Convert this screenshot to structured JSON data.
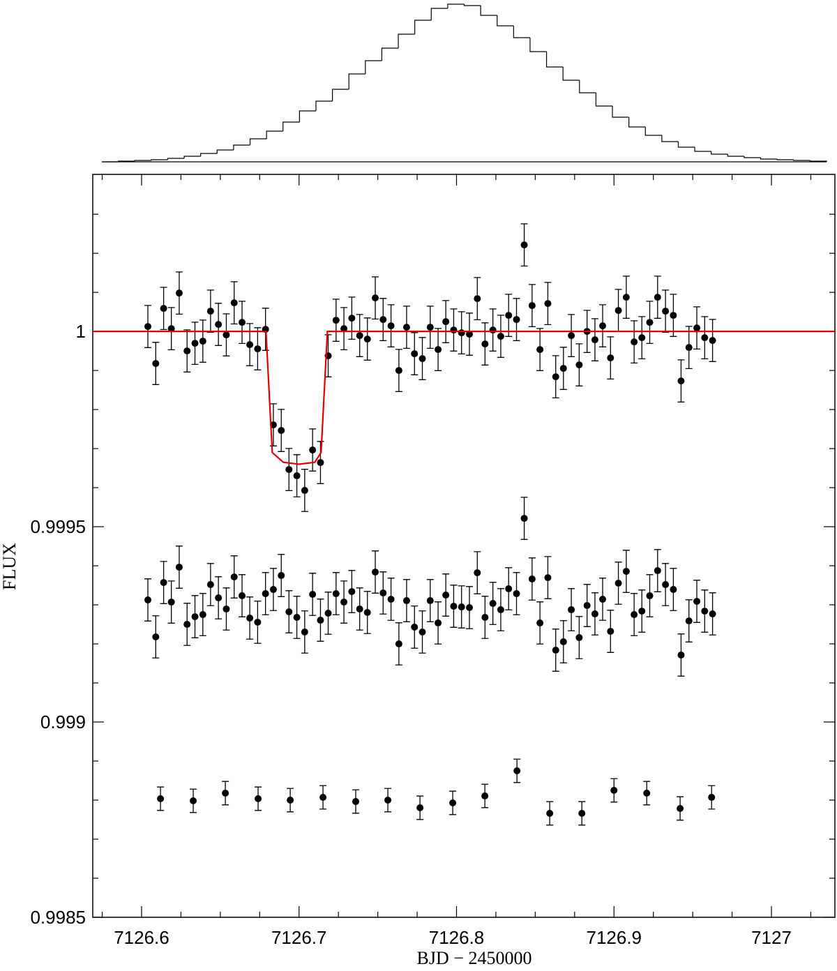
{
  "chart_data": [
    {
      "type": "histogram",
      "bins": [
        0,
        1,
        2,
        3,
        4,
        5,
        6,
        7,
        8,
        9,
        10,
        11,
        12,
        13,
        14,
        15,
        16,
        17,
        18,
        19,
        20,
        21,
        22,
        23,
        24,
        25,
        26,
        27,
        28,
        29,
        30,
        31,
        32,
        33,
        34,
        35,
        36,
        37,
        38,
        39,
        40,
        41,
        42,
        43,
        44
      ],
      "counts": [
        0,
        1,
        2,
        3,
        5,
        8,
        12,
        17,
        24,
        33,
        44,
        57,
        73,
        87,
        104,
        126,
        145,
        163,
        183,
        203,
        220,
        226,
        224,
        210,
        195,
        178,
        158,
        136,
        117,
        99,
        80,
        64,
        50,
        38,
        29,
        21,
        15,
        11,
        8,
        6,
        4,
        3,
        2,
        1
      ],
      "xlim": [
        0,
        44
      ],
      "ylim": [
        0,
        230
      ],
      "color": "#000000"
    },
    {
      "type": "scatter",
      "xlabel": "BJD − 2450000",
      "ylabel": "FLUX",
      "xlim": [
        7126.569,
        7127.0403
      ],
      "ylim": [
        0.9985,
        1.000402
      ],
      "xticks": [
        7126.6,
        7126.7,
        7126.8,
        7126.9,
        7127
      ],
      "xminorticks": [
        7126.575,
        7126.625,
        7126.65,
        7126.675,
        7126.725,
        7126.75,
        7126.775,
        7126.825,
        7126.85,
        7126.875,
        7126.925,
        7126.95,
        7126.975,
        7127.025
      ],
      "yticks": [
        0.9985,
        0.999,
        0.9995,
        1
      ],
      "yminorticks": [
        0.9986,
        0.9987,
        0.9988,
        0.9989,
        0.9991,
        0.9992,
        0.9993,
        0.9994,
        0.9996,
        0.9997,
        0.9998,
        0.9999,
        1.0001,
        1.0002,
        1.0003
      ],
      "x": [
        7126.604,
        7126.609,
        7126.614,
        7126.6189,
        7126.6239,
        7126.6289,
        7126.6339,
        7126.6389,
        7126.6438,
        7126.6488,
        7126.6538,
        7126.6588,
        7126.6638,
        7126.6687,
        7126.6737,
        7126.6787,
        7126.6837,
        7126.6887,
        7126.6936,
        7126.6986,
        7126.7036,
        7126.7086,
        7126.7136,
        7126.7185,
        7126.7235,
        7126.7285,
        7126.7335,
        7126.7385,
        7126.7434,
        7126.7484,
        7126.7534,
        7126.7584,
        7126.7634,
        7126.7683,
        7126.7733,
        7126.7783,
        7126.7833,
        7126.7883,
        7126.7932,
        7126.7982,
        7126.8032,
        7126.8082,
        7126.8132,
        7126.8181,
        7126.8231,
        7126.8281,
        7126.8331,
        7126.8381,
        7126.843,
        7126.848,
        7126.853,
        7126.858,
        7126.863,
        7126.8679,
        7126.8729,
        7126.8779,
        7126.8829,
        7126.8879,
        7126.8928,
        7126.8978,
        7126.9028,
        7126.9078,
        7126.9128,
        7126.9177,
        7126.9227,
        7126.9277,
        7126.9327,
        7126.9377,
        7126.9426,
        7126.9476,
        7126.9526,
        7126.9576,
        7126.9626
      ],
      "series": [
        {
          "color": "#000000",
          "error": 5.4e-05,
          "values": [
            1.0000125,
            0.9999179,
            1.0000589,
            1.0000071,
            1.0000982,
            0.99995,
            0.9999696,
            0.999975,
            1.0000518,
            1.0000179,
            0.9999911,
            1.0000732,
            1.0000232,
            0.9999661,
            0.9999554,
            1.0000054,
            0.9997607,
            0.9997464,
            0.9996464,
            0.9996304,
            0.9995929,
            0.9996964,
            0.9996643,
            0.9999375,
            1.0000286,
            1.0000071,
            1.0000339,
            0.9999893,
            0.9999804,
            1.0000857,
            1.0000304,
            1.0000143,
            0.9999,
            1.0000107,
            0.9999429,
            0.9999304,
            1.0000107,
            0.9999536,
            1.000025,
            1.0000036,
            0.9999964,
            0.9999929,
            1.0000839,
            0.9999679,
            1.0000036,
            0.9999875,
            1.0000411,
            1.0000304,
            1.0002214,
            1.0000661,
            0.9999536,
            1.0000714,
            0.9998839,
            0.9999054,
            0.9999893,
            0.9999143,
            1,
            0.9999786,
            1.0000143,
            0.9999321,
            1.0000536,
            1.0000875,
            0.9999732,
            0.9999839,
            1.0000232,
            1.0000875,
            1.0000518,
            1.0000411,
            0.9998732,
            0.9999589,
            1.0000089,
            0.9999839,
            0.9999768
          ]
        },
        {
          "color": "#000000",
          "error": 5.4e-05,
          "values": [
            0.9993125,
            0.9992179,
            0.9993571,
            0.9993071,
            0.9993964,
            0.99925,
            0.9992696,
            0.999275,
            0.9993518,
            0.9993179,
            0.9992893,
            0.9993714,
            0.9993232,
            0.9992661,
            0.9992554,
            0.9993286,
            0.9993393,
            0.999375,
            0.9992821,
            0.9992679,
            0.9992304,
            0.9993268,
            0.9992607,
            0.9992786,
            0.9993286,
            0.9993071,
            0.9993339,
            0.9992893,
            0.9992804,
            0.9993839,
            0.9993304,
            0.9993143,
            0.9992,
            0.9993107,
            0.9992429,
            0.9992304,
            0.9993107,
            0.9992536,
            0.999325,
            0.9992964,
            0.9992946,
            0.9992929,
            0.9993821,
            0.9992679,
            0.9993036,
            0.9992875,
            0.9993411,
            0.9993286,
            0.9995214,
            0.9993661,
            0.9992536,
            0.9993696,
            0.9991839,
            0.9992054,
            0.9992875,
            0.9992161,
            0.9992982,
            0.9992768,
            0.9993143,
            0.9992321,
            0.9993554,
            0.9993857,
            0.999275,
            0.9992839,
            0.9993232,
            0.9993875,
            0.9993518,
            0.9993393,
            0.9991714,
            0.9992589,
            0.9993089,
            0.9992839,
            0.9992768
          ]
        },
        {
          "color": "#000000",
          "error": 3e-05,
          "x": [
            7126.612,
            7126.6328,
            7126.6532,
            7126.674,
            7126.6944,
            7126.7152,
            7126.736,
            7126.7564,
            7126.7768,
            7126.7976,
            7126.818,
            7126.8384,
            7126.8592,
            7126.8796,
            7126.9,
            7126.9208,
            7126.942,
            7126.962
          ],
          "values": [
            0.9988036,
            0.9987982,
            0.9988179,
            0.9988036,
            0.9988,
            0.9988071,
            0.9987964,
            0.9988,
            0.9987804,
            0.9987929,
            0.9988107,
            0.998875,
            0.9987661,
            0.9987661,
            0.998825,
            0.9988179,
            0.9987786,
            0.9988071
          ]
        },
        {
          "color": "#e00000",
          "type": "line",
          "x": [
            7126.569,
            7126.679,
            7126.683,
            7126.69,
            7126.7,
            7126.71,
            7126.714,
            7126.718,
            7127.0403
          ],
          "values": [
            1,
            1,
            0.99969,
            0.999665,
            0.99966,
            0.999665,
            0.99969,
            1,
            1
          ]
        }
      ]
    }
  ]
}
